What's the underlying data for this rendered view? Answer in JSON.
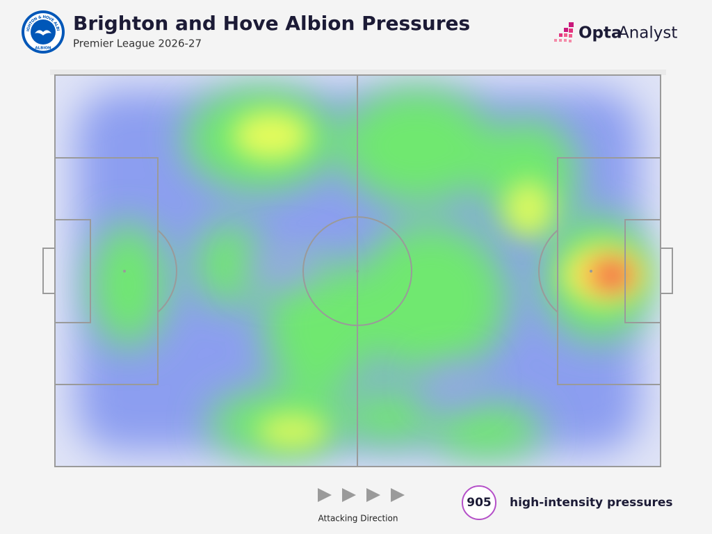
{
  "header": {
    "title": "Brighton and Hove Albion Pressures",
    "subtitle": "Premier League 2026-27"
  },
  "badge": {
    "top": "BRIGHTON & HOVE ALBION",
    "bottom": "ALBION"
  },
  "brand": {
    "bold": "Opta",
    "light": "Analyst"
  },
  "legend": {
    "direction": "Attacking Direction"
  },
  "stat": {
    "value": 905,
    "label": "high-intensity pressures"
  }
}
